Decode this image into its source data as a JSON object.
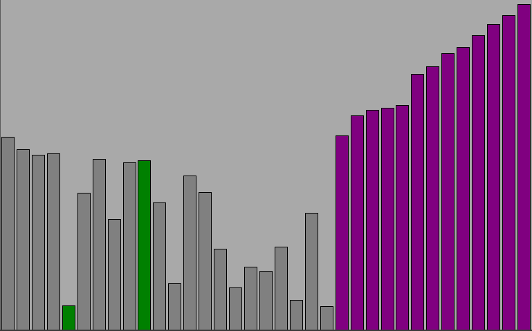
{
  "visualizer": {
    "colors": {
      "background": "#a9a9a9",
      "unsorted": "#808080",
      "compare": "#008000",
      "sorted": "#800080",
      "outline": "#000000"
    }
  },
  "chart_data": {
    "type": "bar",
    "title": "",
    "xlabel": "",
    "ylabel": "",
    "ylim": [
      0,
      475
    ],
    "grid": false,
    "legend": "none",
    "values": [
      279,
      261,
      253,
      255,
      35,
      198,
      247,
      160,
      242,
      245,
      184,
      67,
      223,
      199,
      117,
      61,
      91,
      85,
      120,
      43,
      169,
      34,
      281,
      310,
      318,
      321,
      325,
      370,
      381,
      400,
      409,
      426,
      442,
      455,
      471
    ],
    "states": [
      "unsorted",
      "unsorted",
      "unsorted",
      "unsorted",
      "compare",
      "unsorted",
      "unsorted",
      "unsorted",
      "unsorted",
      "compare",
      "unsorted",
      "unsorted",
      "unsorted",
      "unsorted",
      "unsorted",
      "unsorted",
      "unsorted",
      "unsorted",
      "unsorted",
      "unsorted",
      "unsorted",
      "unsorted",
      "sorted",
      "sorted",
      "sorted",
      "sorted",
      "sorted",
      "sorted",
      "sorted",
      "sorted",
      "sorted",
      "sorted",
      "sorted",
      "sorted",
      "sorted"
    ]
  }
}
